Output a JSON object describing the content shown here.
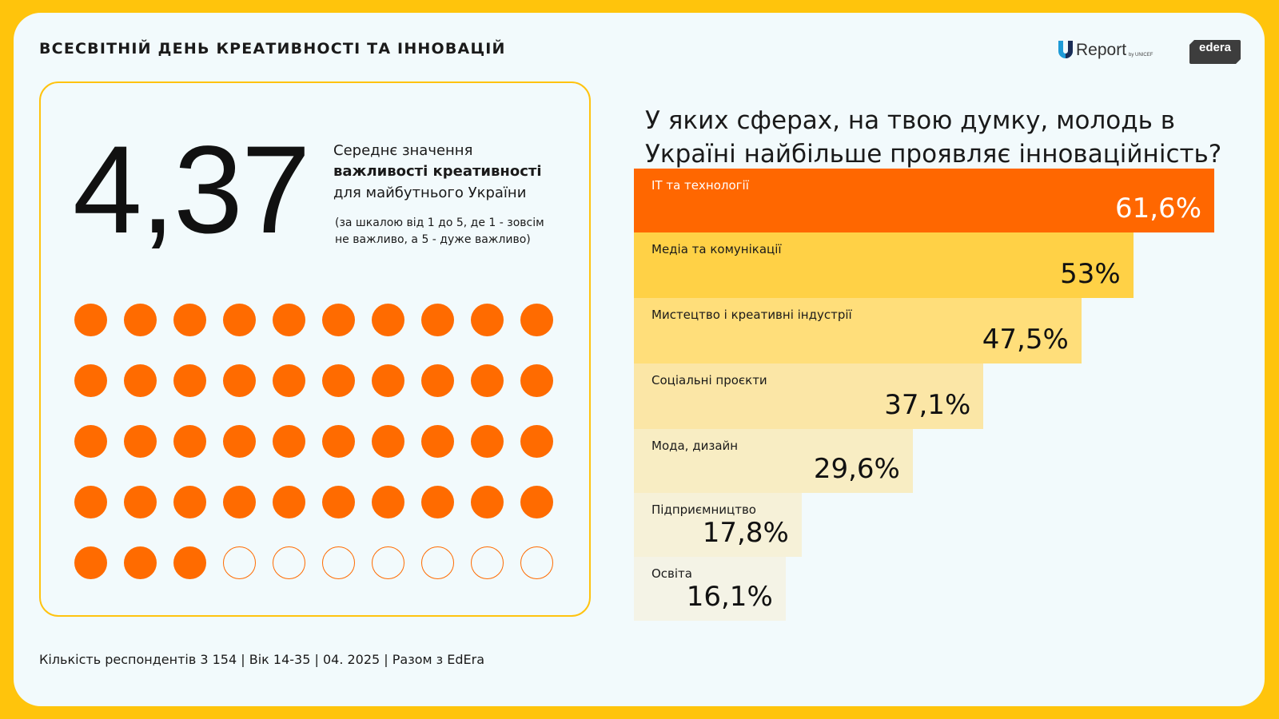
{
  "header": {
    "title": "ВСЕСВІТНІЙ ДЕНЬ КРЕАТИВНОСТІ ТА ІННОВАЦІЙ",
    "logos": {
      "ureport_name": "Report",
      "ureport_by": "by UNICEF",
      "edera_name": "edera"
    }
  },
  "stat": {
    "value": "4,37",
    "line1": "Середнє значення",
    "line2": "важливості креативності",
    "line3": "для майбутнього України",
    "note1": "(за шкалою від 1 до 5, де 1 - зовсім",
    "note2": "не важливо, а 5 - дуже важливо)"
  },
  "dots": {
    "total": 50,
    "filled": 43,
    "columns": 10,
    "color": "#FF6B00"
  },
  "question": "У яких сферах, на твою думку, молодь в Україні найбільше проявляє інноваційність?",
  "chart_data": {
    "type": "bar",
    "orientation": "horizontal",
    "categories": [
      "ІТ та технології",
      "Медіа та комунікації",
      "Мистецтво і креативні індустрії",
      "Соціальні проєкти",
      "Мода, дизайн",
      "Підприємництво",
      "Освіта"
    ],
    "values": [
      61.6,
      53,
      47.5,
      37.1,
      29.6,
      17.8,
      16.1
    ],
    "value_labels": [
      "61,6%",
      "53%",
      "47,5%",
      "37,1%",
      "29,6%",
      "17,8%",
      "16,1%"
    ],
    "colors": [
      "#FF6700",
      "#FFD146",
      "#FFDE7A",
      "#FBE6A6",
      "#F8EDC3",
      "#F6F1D8",
      "#F4F3E6"
    ],
    "title": "У яких сферах, на твою думку, молодь в Україні найбільше проявляє інноваційність?",
    "unit": "%"
  },
  "footer": "Кількість респондентів 3 154 | Вік 14-35 | 04. 2025 | Разом з EdEra"
}
